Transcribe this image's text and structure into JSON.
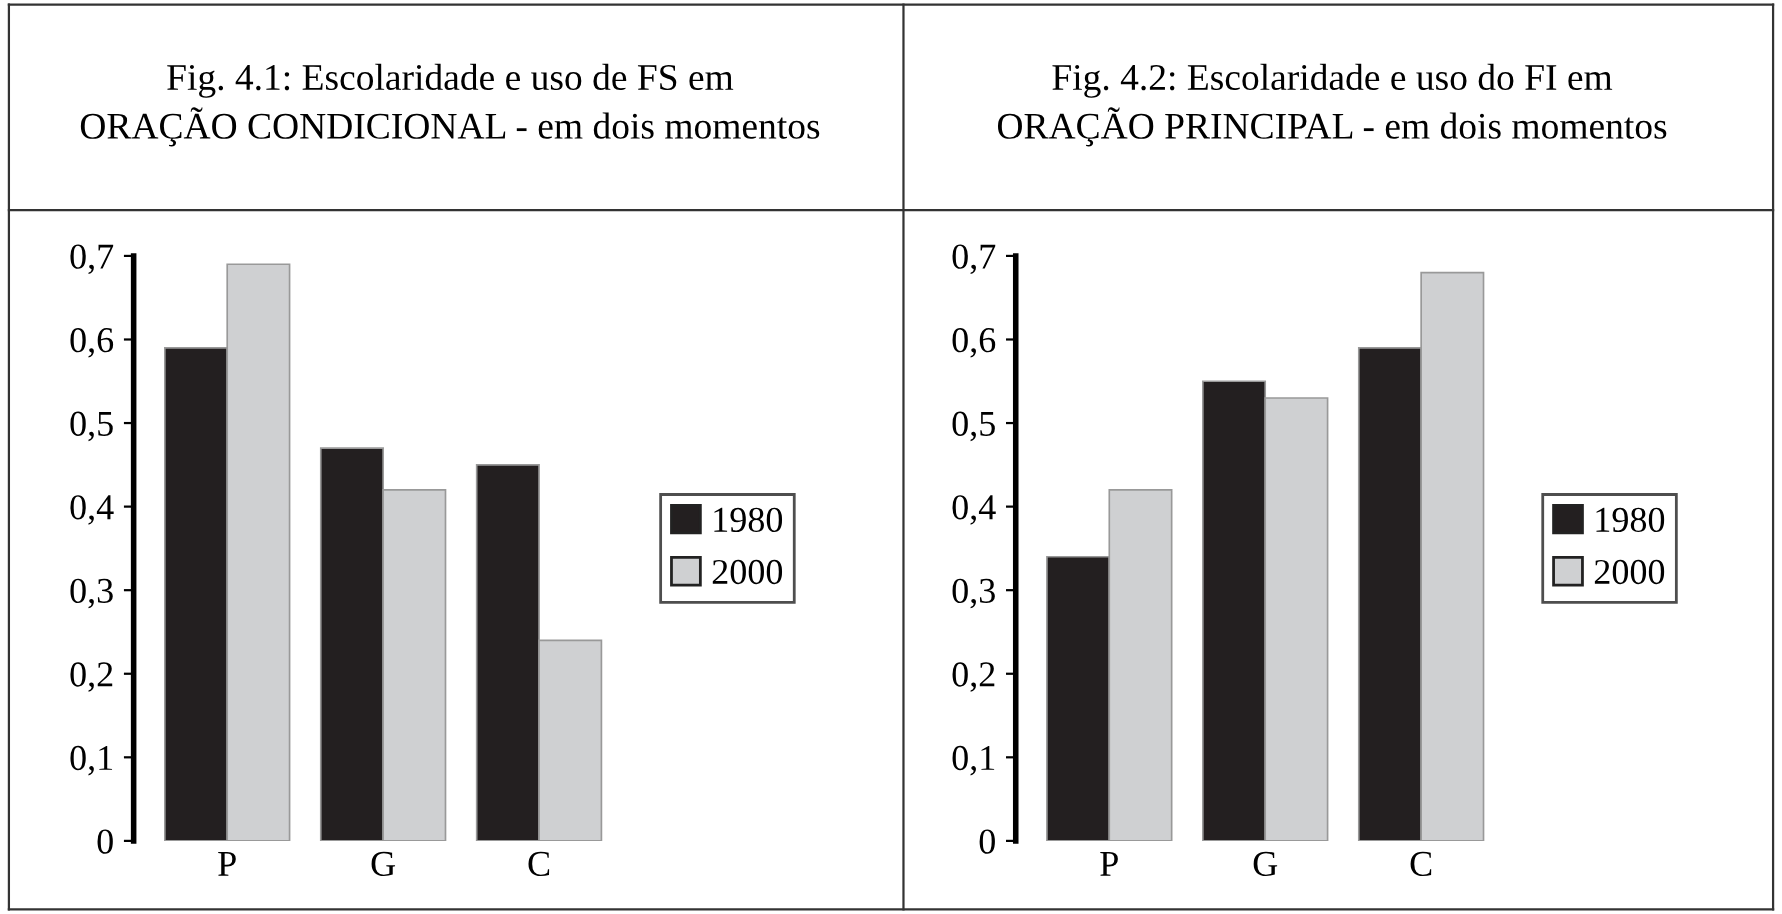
{
  "chart_data": [
    {
      "type": "bar",
      "title": "Fig. 4.1: Escolaridade e uso de FS em\nORAÇÃO CONDICIONAL - em dois momentos",
      "categories": [
        "P",
        "G",
        "C"
      ],
      "series": [
        {
          "name": "1980",
          "color": "#231f20",
          "values": [
            0.59,
            0.47,
            0.45
          ]
        },
        {
          "name": "2000",
          "color": "#cfd0d2",
          "values": [
            0.69,
            0.42,
            0.24
          ]
        }
      ],
      "ylim": [
        0,
        0.7
      ],
      "yticks": [
        0,
        {
          "value": 0.1,
          "label": "0,1"
        },
        {
          "value": 0.2,
          "label": "0,2"
        },
        {
          "value": 0.3,
          "label": "0,3"
        },
        {
          "value": 0.4,
          "label": "0,4"
        },
        {
          "value": 0.5,
          "label": "0,5"
        },
        {
          "value": 0.6,
          "label": "0,6"
        },
        {
          "value": 0.7,
          "label": "0,7"
        }
      ],
      "grid": false,
      "legend": "right"
    },
    {
      "type": "bar",
      "title": "Fig. 4.2: Escolaridade e uso do FI em\nORAÇÃO PRINCIPAL - em dois momentos",
      "categories": [
        "P",
        "G",
        "C"
      ],
      "series": [
        {
          "name": "1980",
          "color": "#231f20",
          "values": [
            0.34,
            0.55,
            0.59
          ]
        },
        {
          "name": "2000",
          "color": "#cfd0d2",
          "values": [
            0.42,
            0.53,
            0.68
          ]
        }
      ],
      "ylim": [
        0,
        0.7
      ],
      "yticks": [
        0,
        {
          "value": 0.1,
          "label": "0,1"
        },
        {
          "value": 0.2,
          "label": "0,2"
        },
        {
          "value": 0.3,
          "label": "0,3"
        },
        {
          "value": 0.4,
          "label": "0,4"
        },
        {
          "value": 0.5,
          "label": "0,5"
        },
        {
          "value": 0.6,
          "label": "0,6"
        },
        {
          "value": 0.7,
          "label": "0,7"
        }
      ],
      "grid": false,
      "legend": "right"
    }
  ]
}
